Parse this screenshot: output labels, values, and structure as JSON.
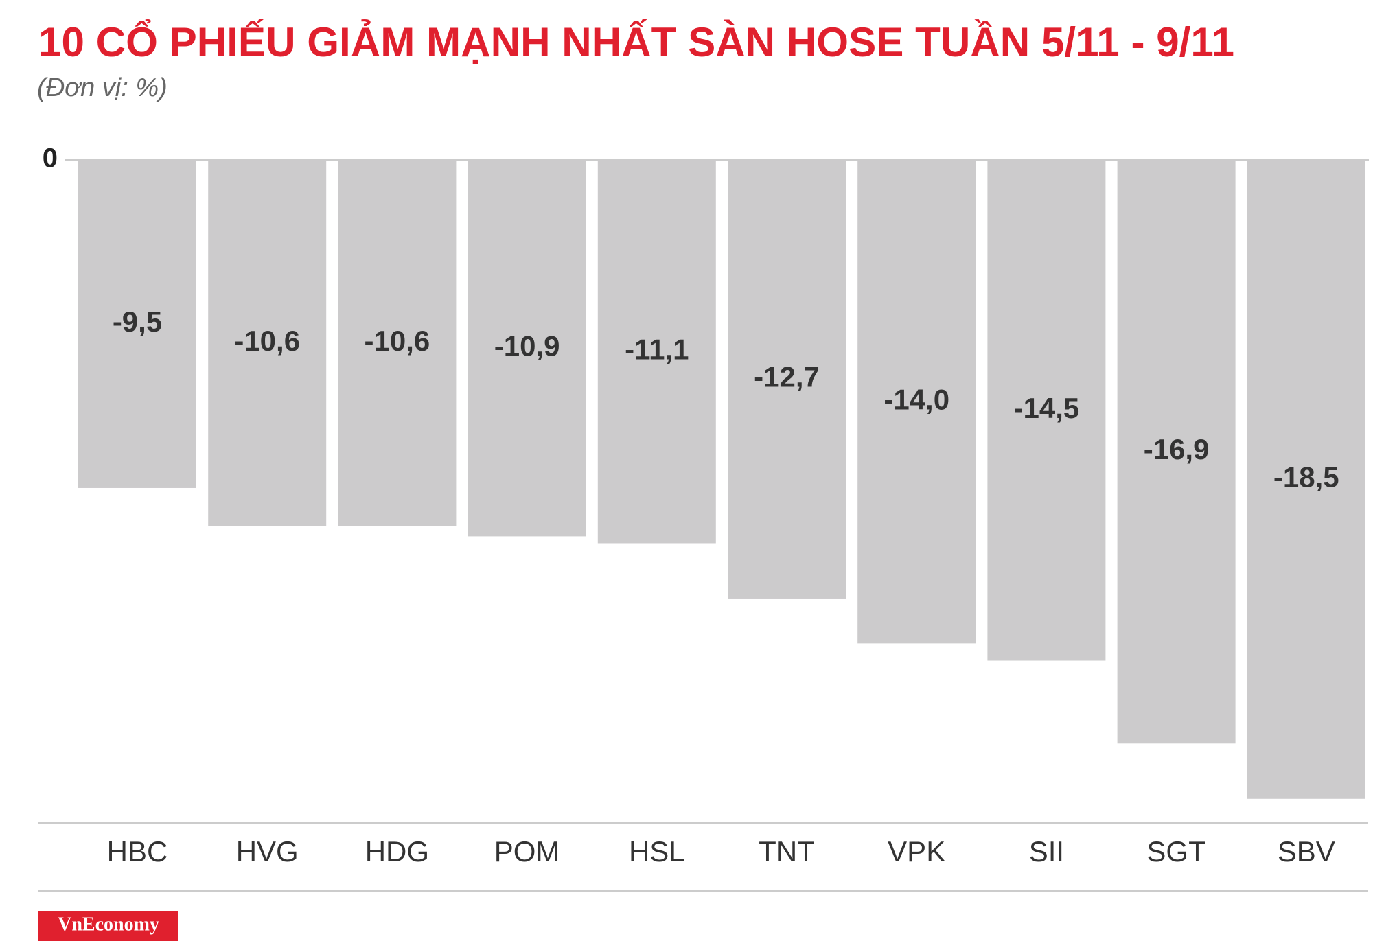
{
  "chart_data": {
    "type": "bar",
    "title": "10 CỔ PHIẾU GIẢM MẠNH NHẤT SÀN HOSE TUẦN 5/11 - 9/11",
    "subtitle": "(Đơn vị: %)",
    "categories": [
      "HBC",
      "HVG",
      "HDG",
      "POM",
      "HSL",
      "TNT",
      "VPK",
      "SII",
      "SGT",
      "SBV"
    ],
    "values": [
      -9.5,
      -10.6,
      -10.6,
      -10.9,
      -11.1,
      -12.7,
      -14.0,
      -14.5,
      -16.9,
      -18.5
    ],
    "value_labels": [
      "-9,5",
      "-10,6",
      "-10,6",
      "-10,9",
      "-11,1",
      "-12,7",
      "-14,0",
      "-14,5",
      "-16,9",
      "-18,5"
    ],
    "color": "#cccbcc",
    "ylim": [
      -19.2,
      0
    ],
    "yticks": [
      0
    ],
    "source": "VnEconomy"
  }
}
